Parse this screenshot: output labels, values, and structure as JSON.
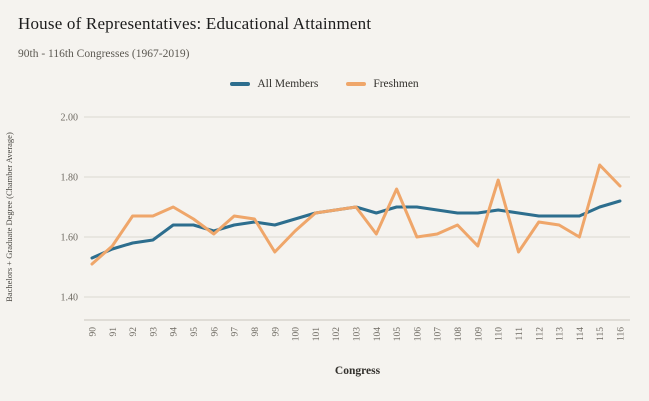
{
  "header": {
    "title": "House of Representatives: Educational Attainment",
    "subtitle": "90th - 116th Congresses (1967-2019)"
  },
  "axes": {
    "x_title": "Congress",
    "y_title": "Bachelors + Graduate Degree (Chamber Average)"
  },
  "colors": {
    "background": "#f5f3ef",
    "grid": "#dcd8d0",
    "axis_line": "#c9c5bd",
    "tick_text": "#6e6a62",
    "all_members": "#2d6e8e",
    "freshmen": "#efa66a"
  },
  "chart_data": {
    "type": "line",
    "x": [
      90,
      91,
      92,
      93,
      94,
      95,
      96,
      97,
      98,
      99,
      100,
      101,
      102,
      103,
      104,
      105,
      106,
      107,
      108,
      109,
      110,
      111,
      112,
      113,
      114,
      115,
      116
    ],
    "series": [
      {
        "name": "All Members",
        "color": "#2d6e8e",
        "values": [
          1.53,
          1.56,
          1.58,
          1.59,
          1.64,
          1.64,
          1.62,
          1.64,
          1.65,
          1.64,
          1.66,
          1.68,
          1.69,
          1.7,
          1.68,
          1.7,
          1.7,
          1.69,
          1.68,
          1.68,
          1.69,
          1.68,
          1.67,
          1.67,
          1.67,
          1.7,
          1.72
        ]
      },
      {
        "name": "Freshmen",
        "color": "#efa66a",
        "values": [
          1.51,
          1.57,
          1.67,
          1.67,
          1.7,
          1.66,
          1.61,
          1.67,
          1.66,
          1.55,
          1.62,
          1.68,
          1.69,
          1.7,
          1.61,
          1.76,
          1.6,
          1.61,
          1.64,
          1.57,
          1.79,
          1.55,
          1.65,
          1.64,
          1.6,
          1.84,
          1.77
        ]
      }
    ],
    "title": "House of Representatives: Educational Attainment",
    "subtitle": "90th - 116th Congresses (1967-2019)",
    "xlabel": "Congress",
    "ylabel": "Bachelors + Graduate Degree (Chamber Average)",
    "ylim": [
      1.4,
      2.0
    ],
    "yticks": [
      1.4,
      1.6,
      1.8,
      2.0
    ],
    "ytick_labels": [
      "1.40",
      "1.60",
      "1.80",
      "2.00"
    ],
    "grid": true,
    "legend_position": "top-center"
  }
}
